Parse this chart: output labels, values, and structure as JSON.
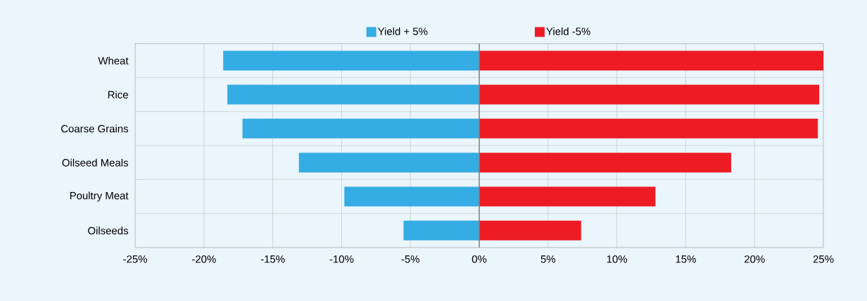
{
  "chart_data": {
    "type": "bar",
    "orientation": "horizontal",
    "categories": [
      "Wheat",
      "Rice",
      "Coarse Grains",
      "Oilseed Meals",
      "Poultry Meat",
      "Oilseeds"
    ],
    "series": [
      {
        "name": "Yield + 5%",
        "color": "#35ace3",
        "values": [
          -18.6,
          -18.3,
          -17.2,
          -13.1,
          -9.8,
          -5.5
        ]
      },
      {
        "name": "Yield -5%",
        "color": "#ed1c24",
        "values": [
          25,
          24.7,
          24.6,
          18.3,
          12.8,
          7.4
        ]
      }
    ],
    "xlim": [
      -25,
      25
    ],
    "xticks": [
      {
        "value": -25,
        "label": "-25%"
      },
      {
        "value": -20,
        "label": "-20%"
      },
      {
        "value": -15,
        "label": "-15%"
      },
      {
        "value": -10,
        "label": "-10%"
      },
      {
        "value": -5,
        "label": "-5%"
      },
      {
        "value": 0,
        "label": "0%"
      },
      {
        "value": 5,
        "label": "5%"
      },
      {
        "value": 10,
        "label": "10%"
      },
      {
        "value": 15,
        "label": "15%"
      },
      {
        "value": 20,
        "label": "20%"
      },
      {
        "value": 25,
        "label": "25%"
      }
    ],
    "grid": true,
    "legend": "top",
    "stacked": true
  }
}
